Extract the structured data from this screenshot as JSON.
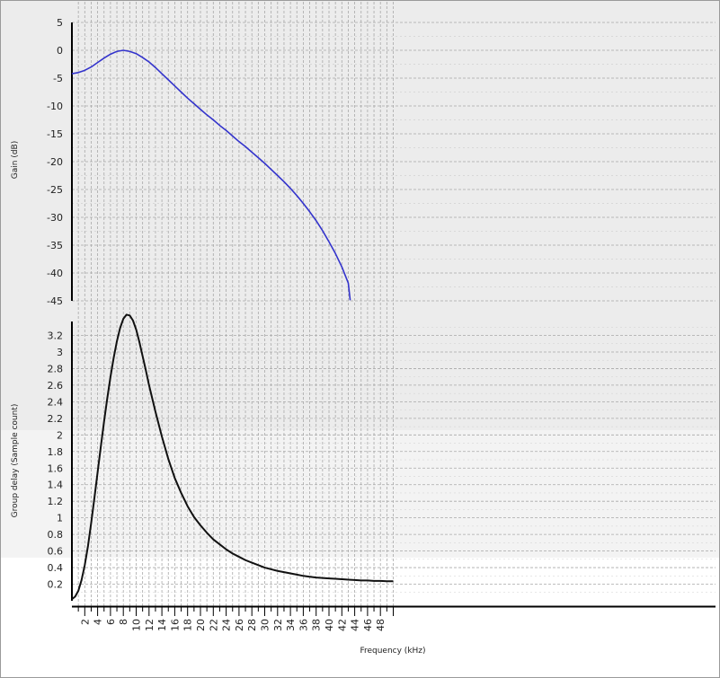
{
  "chart_data": [
    {
      "type": "line",
      "panel": "gain",
      "ylabel": "Gain (dB)",
      "ylim": [
        -45,
        5
      ],
      "yticks": [
        5,
        0,
        -5,
        -10,
        -15,
        -20,
        -25,
        -30,
        -35,
        -40,
        -45
      ],
      "xlim": [
        0,
        50
      ],
      "grid": true,
      "series": [
        {
          "color": "#3333cc",
          "x": [
            0,
            1,
            2,
            3,
            4,
            5,
            6,
            7,
            8,
            9,
            10,
            11,
            12,
            13,
            14,
            15,
            16,
            17,
            18,
            19,
            20,
            21,
            22,
            23,
            24,
            25,
            26,
            27,
            28,
            29,
            30,
            31,
            32,
            33,
            34,
            35,
            36,
            37,
            38,
            39,
            40,
            41,
            42,
            43,
            43.3
          ],
          "y": [
            -4.2,
            -4.0,
            -3.6,
            -3.0,
            -2.2,
            -1.4,
            -0.7,
            -0.2,
            0.0,
            -0.2,
            -0.6,
            -1.3,
            -2.1,
            -3.1,
            -4.2,
            -5.3,
            -6.4,
            -7.5,
            -8.6,
            -9.6,
            -10.6,
            -11.6,
            -12.5,
            -13.5,
            -14.4,
            -15.4,
            -16.4,
            -17.3,
            -18.3,
            -19.3,
            -20.3,
            -21.4,
            -22.5,
            -23.6,
            -24.8,
            -26.1,
            -27.5,
            -29.0,
            -30.6,
            -32.4,
            -34.4,
            -36.5,
            -38.9,
            -41.8,
            -44.9
          ]
        }
      ]
    },
    {
      "type": "line",
      "panel": "group-delay",
      "ylabel": "Group delay (Sample count)",
      "xlabel": "Frequency (kHz)",
      "ylim": [
        0,
        3.4
      ],
      "yticks": [
        0.2,
        0.4,
        0.6,
        0.8,
        1,
        1.2,
        1.4,
        1.6,
        1.8,
        2,
        2.2,
        2.4,
        2.6,
        2.8,
        3,
        3.2
      ],
      "xlim": [
        0,
        50
      ],
      "xticks": [
        2,
        4,
        6,
        8,
        10,
        12,
        14,
        16,
        18,
        20,
        22,
        24,
        26,
        28,
        30,
        32,
        34,
        36,
        38,
        40,
        42,
        44,
        46,
        48
      ],
      "grid": true,
      "series": [
        {
          "color": "#111111",
          "x": [
            0,
            0.5,
            1,
            1.5,
            2,
            2.5,
            3,
            3.5,
            4,
            4.5,
            5,
            5.5,
            6,
            6.5,
            7,
            7.5,
            8,
            8.5,
            9,
            9.5,
            10,
            10.5,
            11,
            11.5,
            12,
            13,
            14,
            15,
            16,
            17,
            18,
            19,
            20,
            21,
            22,
            23,
            24,
            25,
            26,
            27,
            28,
            29,
            30,
            31,
            32,
            33,
            34,
            35,
            36,
            37,
            38,
            39,
            40,
            41,
            42,
            43,
            44,
            45,
            46,
            47,
            48,
            49,
            50
          ],
          "y": [
            0.02,
            0.05,
            0.12,
            0.25,
            0.43,
            0.66,
            0.94,
            1.24,
            1.55,
            1.86,
            2.16,
            2.44,
            2.7,
            2.93,
            3.13,
            3.29,
            3.4,
            3.45,
            3.44,
            3.38,
            3.27,
            3.12,
            2.95,
            2.78,
            2.6,
            2.28,
            1.98,
            1.71,
            1.48,
            1.3,
            1.14,
            1.01,
            0.91,
            0.82,
            0.74,
            0.68,
            0.62,
            0.57,
            0.53,
            0.49,
            0.46,
            0.43,
            0.4,
            0.38,
            0.36,
            0.345,
            0.33,
            0.315,
            0.3,
            0.29,
            0.28,
            0.275,
            0.27,
            0.265,
            0.26,
            0.255,
            0.25,
            0.245,
            0.245,
            0.24,
            0.24,
            0.235,
            0.235
          ]
        }
      ]
    }
  ]
}
